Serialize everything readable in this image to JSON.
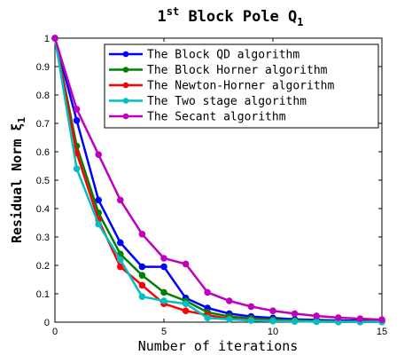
{
  "chart_data": {
    "type": "line",
    "title": {
      "prefix": "1",
      "sup": "st",
      "main": " Block Pole Q",
      "sub": "1"
    },
    "xlabel": "Number of iterations",
    "ylabel": {
      "main": "Residual Norm ξ",
      "sub": "1"
    },
    "xlim": [
      0,
      15
    ],
    "ylim": [
      0,
      1
    ],
    "xticks": [
      0,
      5,
      10,
      15
    ],
    "yticks": [
      0,
      0.1,
      0.2,
      0.3,
      0.4,
      0.5,
      0.6,
      0.7,
      0.8,
      0.9,
      1
    ],
    "ytick_labels": [
      "0",
      "0.1",
      "0.2",
      "0.3",
      "0.4",
      "0.5",
      "0.6",
      "0.7",
      "0.8",
      "0.9",
      "1"
    ],
    "legend_position": "top-right",
    "x": [
      0,
      1,
      2,
      3,
      4,
      5,
      6,
      7,
      8,
      9,
      10,
      11,
      12,
      13,
      14,
      15
    ],
    "series": [
      {
        "name": "The Block QD algorithm",
        "color": "#0000ff",
        "values": [
          1,
          0.71,
          0.43,
          0.28,
          0.195,
          0.195,
          0.085,
          0.05,
          0.03,
          0.02,
          0.015,
          0.01,
          0.008,
          0.006,
          0.005,
          0.004
        ]
      },
      {
        "name": "The Block Horner algorithm",
        "color": "#008000",
        "values": [
          1,
          0.62,
          0.385,
          0.24,
          0.165,
          0.105,
          0.075,
          0.035,
          0.02,
          0.013,
          0.009,
          0.006,
          0.004,
          0.003,
          0.002,
          0.002
        ]
      },
      {
        "name": "The Newton-Horner algorithm",
        "color": "#ff0000",
        "values": [
          1,
          0.595,
          0.36,
          0.195,
          0.13,
          0.065,
          0.04,
          0.025,
          0.012,
          0.008,
          0.005,
          0.003,
          0.002,
          0.001,
          0.001,
          0.001
        ]
      },
      {
        "name": "The Two stage algorithm",
        "color": "#00bfbf",
        "values": [
          1,
          0.54,
          0.345,
          0.22,
          0.09,
          0.075,
          0.065,
          0.015,
          0.01,
          0.006,
          0.004,
          0.003,
          0.002,
          0.001,
          0.001,
          0.001
        ]
      },
      {
        "name": "The Secant algorithm",
        "color": "#bf00bf",
        "values": [
          1,
          0.75,
          0.59,
          0.43,
          0.31,
          0.225,
          0.205,
          0.105,
          0.075,
          0.055,
          0.04,
          0.03,
          0.022,
          0.016,
          0.012,
          0.009
        ]
      }
    ]
  }
}
